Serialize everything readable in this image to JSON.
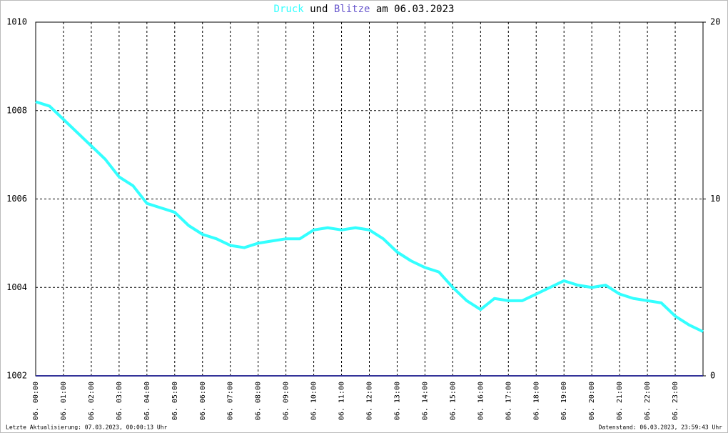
{
  "chart_data": {
    "type": "line",
    "title_connector": "und",
    "title_suffix": "am 06.03.2023",
    "x": [
      0,
      0.5,
      1,
      1.5,
      2,
      2.5,
      3,
      3.5,
      4,
      4.5,
      5,
      5.5,
      6,
      6.5,
      7,
      7.5,
      8,
      8.5,
      9,
      9.5,
      10,
      10.5,
      11,
      11.5,
      12,
      12.5,
      13,
      13.5,
      14,
      14.5,
      15,
      15.5,
      16,
      16.5,
      17,
      17.5,
      18,
      18.5,
      19,
      19.5,
      20,
      20.5,
      21,
      21.5,
      22,
      22.5,
      23,
      23.5,
      24
    ],
    "series": [
      {
        "name": "Druck",
        "color": "#33ffff",
        "values": [
          1008.2,
          1008.1,
          1007.8,
          1007.5,
          1007.2,
          1006.9,
          1006.5,
          1006.3,
          1005.9,
          1005.8,
          1005.7,
          1005.4,
          1005.2,
          1005.1,
          1004.95,
          1004.9,
          1005.0,
          1005.05,
          1005.1,
          1005.1,
          1005.3,
          1005.35,
          1005.3,
          1005.35,
          1005.3,
          1005.1,
          1004.8,
          1004.6,
          1004.45,
          1004.35,
          1004.0,
          1003.7,
          1003.5,
          1003.75,
          1003.7,
          1003.7,
          1003.85,
          1004.0,
          1004.15,
          1004.05,
          1004.0,
          1004.05,
          1003.85,
          1003.75,
          1003.7,
          1003.65,
          1003.35,
          1003.15,
          1003.0
        ]
      },
      {
        "name": "Blitze",
        "color": "#333399",
        "axis": "y2",
        "values": [
          0,
          0,
          0,
          0,
          0,
          0,
          0,
          0,
          0,
          0,
          0,
          0,
          0,
          0,
          0,
          0,
          0,
          0,
          0,
          0,
          0,
          0,
          0,
          0,
          0,
          0,
          0,
          0,
          0,
          0,
          0,
          0,
          0,
          0,
          0,
          0,
          0,
          0,
          0,
          0,
          0,
          0,
          0,
          0,
          0,
          0,
          0,
          0,
          0
        ]
      }
    ],
    "xlim": [
      0,
      24
    ],
    "xticks": [
      {
        "value": 0,
        "label": "06. 00:00"
      },
      {
        "value": 1,
        "label": "06. 01:00"
      },
      {
        "value": 2,
        "label": "06. 02:00"
      },
      {
        "value": 3,
        "label": "06. 03:00"
      },
      {
        "value": 4,
        "label": "06. 04:00"
      },
      {
        "value": 5,
        "label": "06. 05:00"
      },
      {
        "value": 6,
        "label": "06. 06:00"
      },
      {
        "value": 7,
        "label": "06. 07:00"
      },
      {
        "value": 8,
        "label": "06. 08:00"
      },
      {
        "value": 9,
        "label": "06. 09:00"
      },
      {
        "value": 10,
        "label": "06. 10:00"
      },
      {
        "value": 11,
        "label": "06. 11:00"
      },
      {
        "value": 12,
        "label": "06. 12:00"
      },
      {
        "value": 13,
        "label": "06. 13:00"
      },
      {
        "value": 14,
        "label": "06. 14:00"
      },
      {
        "value": 15,
        "label": "06. 15:00"
      },
      {
        "value": 16,
        "label": "06. 16:00"
      },
      {
        "value": 17,
        "label": "06. 17:00"
      },
      {
        "value": 18,
        "label": "06. 18:00"
      },
      {
        "value": 19,
        "label": "06. 19:00"
      },
      {
        "value": 20,
        "label": "06. 20:00"
      },
      {
        "value": 21,
        "label": "06. 21:00"
      },
      {
        "value": 22,
        "label": "06. 22:00"
      },
      {
        "value": 23,
        "label": "06. 23:00"
      }
    ],
    "ylim": [
      1002,
      1010
    ],
    "yticks": [
      1002,
      1004,
      1006,
      1008,
      1010
    ],
    "y2lim": [
      0,
      20
    ],
    "y2ticks": [
      0,
      10,
      20
    ],
    "grid": true,
    "footer_left": "Letzte Aktualisierung: 07.03.2023, 00:00:13 Uhr",
    "footer_right": "Datenstand: 06.03.2023, 23:59:43 Uhr"
  }
}
